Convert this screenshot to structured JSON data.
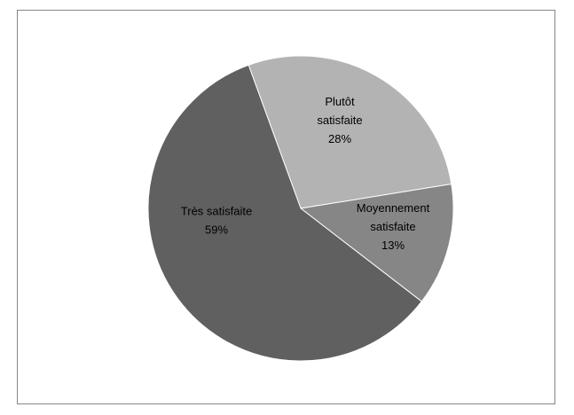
{
  "chart_data": {
    "type": "pie",
    "title": "",
    "slices": [
      {
        "label": [
          "Plutôt",
          "satisfaite"
        ],
        "value_label": "28%",
        "value": 28,
        "color": "#b3b3b3"
      },
      {
        "label": [
          "Moyennement",
          "satisfaite"
        ],
        "value_label": "13%",
        "value": 13,
        "color": "#868686"
      },
      {
        "label": [
          "Très satisfaite"
        ],
        "value_label": "59%",
        "value": 59,
        "color": "#606060"
      }
    ],
    "start_angle_deg": -20,
    "legend": "none"
  }
}
